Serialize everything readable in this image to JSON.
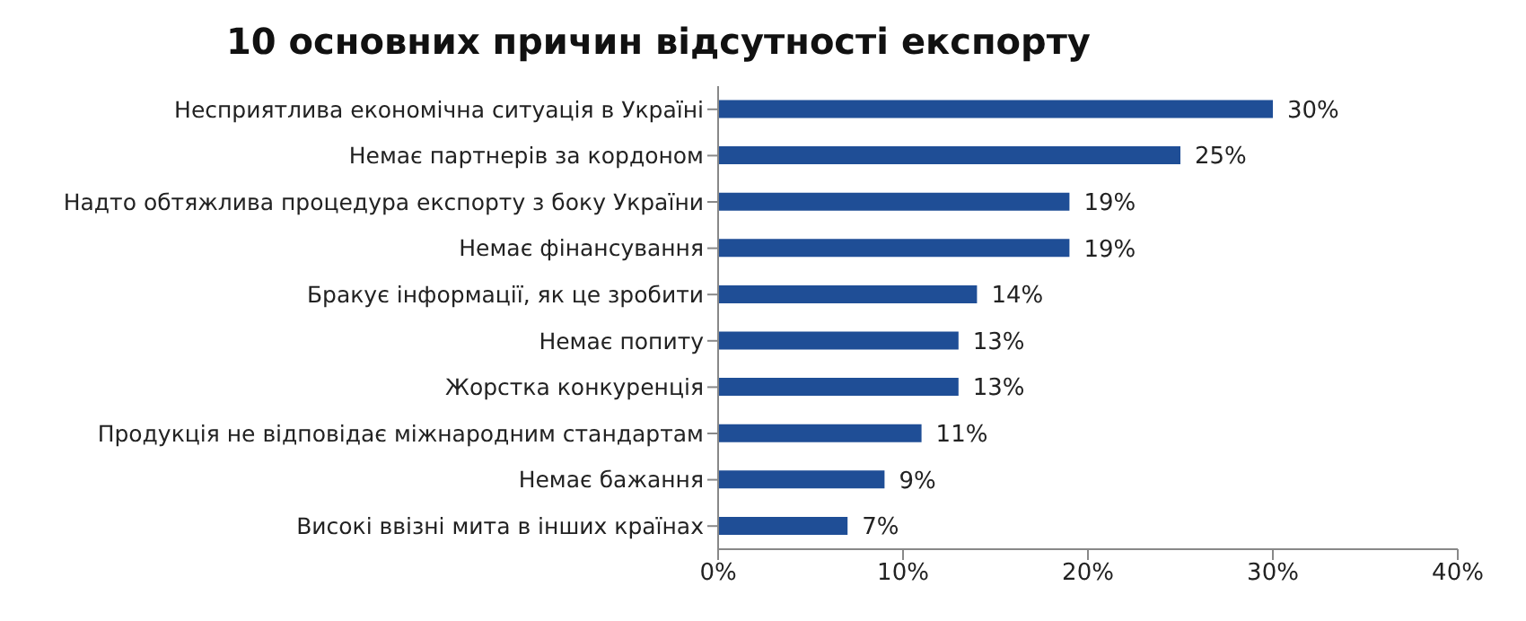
{
  "chart_data": {
    "type": "bar",
    "orientation": "horizontal",
    "title": "10 основних причин відсутності експорту",
    "categories": [
      "Несприятлива економічна  ситуація в Україні",
      "Немає партнерів  за кордоном",
      "Надто обтяжлива процедура експорту з боку України",
      "Немає фінансування",
      "Бракує інформації,  як це зробити",
      "Немає попиту",
      "Жорстка конкуренція",
      "Продукція не відповідає міжнародним  стандартам",
      "Немає бажання",
      "Високі ввізні мита в інших  країнах"
    ],
    "values": [
      30,
      25,
      19,
      19,
      14,
      13,
      13,
      11,
      9,
      7
    ],
    "value_labels": [
      "30%",
      "25%",
      "19%",
      "19%",
      "14%",
      "13%",
      "13%",
      "11%",
      "9%",
      "7%"
    ],
    "color": "#1f4e96",
    "xlim": [
      0,
      40
    ],
    "xticks": [
      {
        "value": 0,
        "label": "0%"
      },
      {
        "value": 10,
        "label": "10%"
      },
      {
        "value": 20,
        "label": "20%"
      },
      {
        "value": 30,
        "label": "30%"
      },
      {
        "value": 40,
        "label": "40%"
      }
    ],
    "grid": false,
    "legend": false
  }
}
